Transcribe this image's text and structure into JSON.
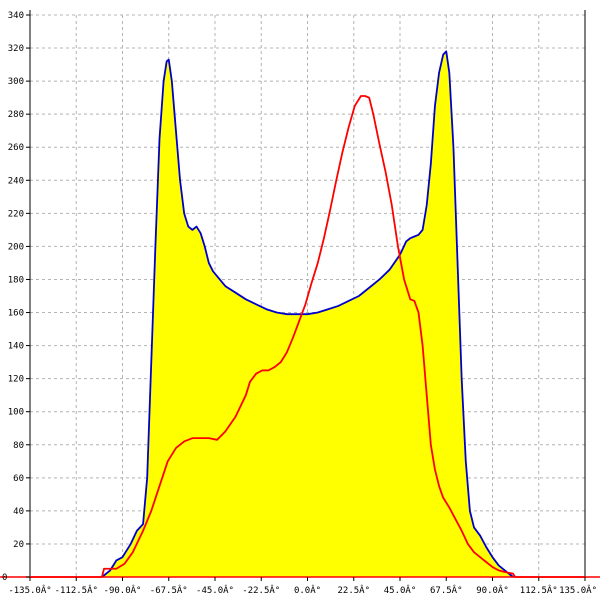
{
  "chart_data": {
    "type": "line",
    "title": "",
    "xlabel": "",
    "ylabel": "",
    "xlim": [
      -135,
      135
    ],
    "ylim": [
      0,
      340
    ],
    "grid": true,
    "x_ticks": [
      -135,
      -112.5,
      -90,
      -67.5,
      -45,
      -22.5,
      0,
      22.5,
      45,
      67.5,
      90,
      112.5,
      135
    ],
    "x_tick_labels": [
      "-135.0Â°",
      "-112.5Â°",
      "-90.0Â°",
      "-67.5Â°",
      "-45.0Â°",
      "-22.5Â°",
      "0.0Â°",
      "22.5Â°",
      "45.0Â°",
      "67.5Â°",
      "90.0Â°",
      "112.5Â°",
      "135.0Â°"
    ],
    "y_ticks": [
      0,
      20,
      40,
      60,
      80,
      100,
      120,
      140,
      160,
      180,
      200,
      220,
      240,
      260,
      280,
      300,
      320,
      340
    ],
    "y_tick_labels": [
      "0",
      "20",
      "40",
      "60",
      "80",
      "100",
      "120",
      "140",
      "160",
      "180",
      "200",
      "220",
      "240",
      "260",
      "280",
      "300",
      "320",
      "340"
    ],
    "series": [
      {
        "color": "#0000cc",
        "fill": "#ffff00",
        "x": [
          -100,
          -96,
          -93,
          -90,
          -86,
          -83,
          -80,
          -78,
          -76,
          -74,
          -72,
          -70,
          -68.5,
          -67.5,
          -66,
          -64,
          -62,
          -60,
          -58,
          -56,
          -54,
          -52,
          -50,
          -48,
          -46,
          -44,
          -40,
          -35,
          -30,
          -25,
          -20,
          -15,
          -10,
          -5,
          0,
          5,
          10,
          15,
          20,
          25,
          30,
          35,
          40,
          45,
          48,
          50,
          52,
          54,
          56,
          58,
          60,
          62,
          64,
          66,
          67.5,
          69,
          71,
          73,
          75,
          77,
          79,
          81,
          84,
          87,
          90,
          93,
          96,
          100
        ],
        "values": [
          0,
          4,
          10,
          12,
          20,
          28,
          32,
          60,
          130,
          200,
          265,
          300,
          312,
          313,
          300,
          270,
          240,
          220,
          212,
          210,
          212,
          208,
          200,
          190,
          185,
          182,
          176,
          172,
          168,
          165,
          162,
          160,
          159,
          159,
          159,
          160,
          162,
          164,
          167,
          170,
          175,
          180,
          186,
          195,
          203,
          205,
          206,
          207,
          210,
          225,
          250,
          285,
          305,
          316,
          318,
          305,
          260,
          190,
          120,
          70,
          40,
          30,
          25,
          18,
          12,
          7,
          4,
          0
        ]
      },
      {
        "color": "#ff0000",
        "x": [
          -135,
          -100,
          -99,
          -93,
          -89,
          -85,
          -80,
          -76,
          -72,
          -68,
          -64,
          -60,
          -56,
          -52,
          -48,
          -44,
          -40,
          -35,
          -30,
          -28,
          -25,
          -22,
          -19,
          -16,
          -13,
          -10,
          -7,
          -4,
          -1,
          2,
          5,
          8,
          11,
          14,
          17,
          20,
          23,
          26,
          28,
          30,
          32,
          35,
          38,
          41,
          44,
          47,
          50,
          52,
          54,
          56,
          58,
          60,
          62,
          64,
          66,
          69,
          72,
          75,
          78,
          81,
          84,
          87,
          90,
          93,
          96,
          100,
          101,
          135
        ],
        "values": [
          0,
          0,
          5,
          5,
          8,
          15,
          28,
          40,
          55,
          70,
          78,
          82,
          84,
          84,
          84,
          83,
          88,
          97,
          110,
          118,
          123,
          125,
          125,
          127,
          130,
          136,
          145,
          155,
          165,
          178,
          190,
          205,
          222,
          240,
          257,
          272,
          285,
          291,
          291,
          290,
          280,
          262,
          245,
          225,
          200,
          180,
          168,
          167,
          160,
          140,
          110,
          80,
          65,
          55,
          48,
          42,
          35,
          28,
          20,
          15,
          12,
          9,
          6,
          4,
          3,
          2,
          0,
          0
        ]
      }
    ]
  }
}
